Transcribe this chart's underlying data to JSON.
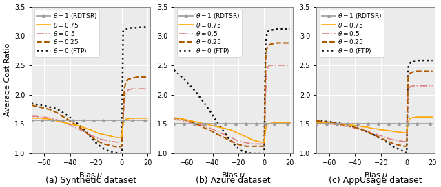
{
  "subplots": [
    {
      "label": "(a) Synthetic dataset"
    },
    {
      "label": "(b) Azure dataset"
    },
    {
      "label": "(c) AppUsage dataset"
    }
  ],
  "xlabel": "Bias $\\mu$",
  "ylabel": "Average Cost Ratio",
  "xlim": [
    -70,
    22
  ],
  "ylim": [
    1.0,
    3.5
  ],
  "xticks": [
    -60,
    -40,
    -20,
    0,
    20
  ],
  "yticks": [
    1.0,
    1.5,
    2.0,
    2.5,
    3.0,
    3.5
  ],
  "lines": [
    {
      "label": "$\\theta = 1$ (RDTSR)",
      "color": "#999999",
      "linestyle": "-",
      "linewidth": 1.2,
      "marker": "^",
      "markersize": 2.5
    },
    {
      "label": "$\\theta = 0.75$",
      "color": "#FFA500",
      "linestyle": "-",
      "linewidth": 1.2
    },
    {
      "label": "$\\theta = 0.5$",
      "color": "#E08080",
      "linestyle": "-.",
      "linewidth": 1.2
    },
    {
      "label": "$\\theta = 0.25$",
      "color": "#B05A00",
      "linestyle": "--",
      "linewidth": 1.5
    },
    {
      "label": "$\\theta = 0$ (FTP)",
      "color": "#111111",
      "linestyle": ":",
      "linewidth": 1.8
    }
  ],
  "x_vals": [
    -70,
    -68,
    -66,
    -64,
    -62,
    -60,
    -58,
    -56,
    -54,
    -52,
    -50,
    -48,
    -46,
    -44,
    -42,
    -40,
    -38,
    -36,
    -34,
    -32,
    -30,
    -28,
    -26,
    -24,
    -22,
    -20,
    -18,
    -16,
    -14,
    -12,
    -10,
    -8,
    -6,
    -4,
    -2,
    0,
    1,
    2,
    3,
    5,
    8,
    10,
    12,
    15,
    18,
    20
  ],
  "datasets": {
    "synthetic": {
      "theta1_y": [
        1.56,
        1.56,
        1.56,
        1.56,
        1.56,
        1.56,
        1.56,
        1.56,
        1.56,
        1.56,
        1.56,
        1.56,
        1.56,
        1.56,
        1.56,
        1.56,
        1.56,
        1.56,
        1.56,
        1.56,
        1.56,
        1.56,
        1.56,
        1.56,
        1.56,
        1.56,
        1.56,
        1.56,
        1.56,
        1.56,
        1.56,
        1.56,
        1.56,
        1.56,
        1.56,
        1.56,
        1.56,
        1.56,
        1.56,
        1.56,
        1.56,
        1.56,
        1.56,
        1.56,
        1.56,
        1.56
      ],
      "theta075_y": [
        1.6,
        1.6,
        1.6,
        1.6,
        1.6,
        1.59,
        1.59,
        1.58,
        1.57,
        1.56,
        1.55,
        1.54,
        1.53,
        1.52,
        1.51,
        1.5,
        1.49,
        1.48,
        1.47,
        1.46,
        1.44,
        1.43,
        1.41,
        1.4,
        1.38,
        1.36,
        1.34,
        1.33,
        1.32,
        1.31,
        1.3,
        1.29,
        1.28,
        1.27,
        1.27,
        1.28,
        1.5,
        1.56,
        1.58,
        1.59,
        1.6,
        1.6,
        1.6,
        1.6,
        1.6,
        1.6
      ],
      "theta05_y": [
        1.63,
        1.63,
        1.63,
        1.62,
        1.62,
        1.62,
        1.61,
        1.6,
        1.59,
        1.58,
        1.57,
        1.55,
        1.53,
        1.52,
        1.5,
        1.48,
        1.46,
        1.44,
        1.42,
        1.4,
        1.38,
        1.36,
        1.33,
        1.31,
        1.29,
        1.27,
        1.25,
        1.24,
        1.23,
        1.22,
        1.21,
        1.2,
        1.2,
        1.19,
        1.19,
        1.2,
        1.6,
        1.9,
        2.0,
        2.08,
        2.1,
        2.1,
        2.1,
        2.1,
        2.1,
        2.1
      ],
      "theta025_y": [
        1.82,
        1.81,
        1.8,
        1.79,
        1.78,
        1.77,
        1.76,
        1.75,
        1.73,
        1.71,
        1.69,
        1.66,
        1.63,
        1.61,
        1.58,
        1.55,
        1.52,
        1.49,
        1.46,
        1.43,
        1.4,
        1.36,
        1.32,
        1.29,
        1.26,
        1.22,
        1.2,
        1.18,
        1.16,
        1.15,
        1.14,
        1.13,
        1.12,
        1.11,
        1.11,
        1.12,
        1.6,
        2.1,
        2.2,
        2.26,
        2.28,
        2.29,
        2.3,
        2.3,
        2.3,
        2.3
      ],
      "theta0_y": [
        1.85,
        1.84,
        1.83,
        1.82,
        1.82,
        1.81,
        1.8,
        1.79,
        1.78,
        1.77,
        1.75,
        1.73,
        1.7,
        1.67,
        1.64,
        1.61,
        1.57,
        1.53,
        1.5,
        1.46,
        1.42,
        1.37,
        1.33,
        1.28,
        1.23,
        1.18,
        1.14,
        1.11,
        1.08,
        1.06,
        1.04,
        1.03,
        1.02,
        1.01,
        1.0,
        1.0,
        3.08,
        3.1,
        3.12,
        3.13,
        3.14,
        3.14,
        3.14,
        3.15,
        3.15,
        3.15
      ]
    },
    "azure": {
      "theta1_y": [
        1.5,
        1.5,
        1.5,
        1.5,
        1.5,
        1.5,
        1.5,
        1.5,
        1.5,
        1.5,
        1.5,
        1.5,
        1.5,
        1.5,
        1.5,
        1.5,
        1.5,
        1.5,
        1.5,
        1.5,
        1.5,
        1.5,
        1.5,
        1.5,
        1.5,
        1.5,
        1.5,
        1.5,
        1.5,
        1.5,
        1.5,
        1.5,
        1.5,
        1.5,
        1.5,
        1.5,
        1.5,
        1.5,
        1.5,
        1.5,
        1.5,
        1.5,
        1.5,
        1.5,
        1.5,
        1.5
      ],
      "theta075_y": [
        1.6,
        1.6,
        1.6,
        1.59,
        1.58,
        1.57,
        1.56,
        1.55,
        1.54,
        1.53,
        1.52,
        1.51,
        1.5,
        1.49,
        1.48,
        1.47,
        1.46,
        1.45,
        1.44,
        1.43,
        1.42,
        1.41,
        1.4,
        1.38,
        1.36,
        1.34,
        1.32,
        1.3,
        1.28,
        1.26,
        1.24,
        1.22,
        1.21,
        1.2,
        1.19,
        1.19,
        1.4,
        1.48,
        1.5,
        1.51,
        1.52,
        1.52,
        1.52,
        1.52,
        1.52,
        1.52
      ],
      "theta05_y": [
        1.58,
        1.57,
        1.57,
        1.56,
        1.55,
        1.54,
        1.53,
        1.52,
        1.51,
        1.5,
        1.49,
        1.48,
        1.46,
        1.44,
        1.43,
        1.41,
        1.39,
        1.37,
        1.35,
        1.33,
        1.31,
        1.29,
        1.27,
        1.25,
        1.23,
        1.21,
        1.2,
        1.19,
        1.18,
        1.17,
        1.17,
        1.16,
        1.16,
        1.16,
        1.16,
        1.16,
        2.0,
        2.4,
        2.48,
        2.5,
        2.5,
        2.5,
        2.5,
        2.5,
        2.5,
        2.5
      ],
      "theta025_y": [
        1.6,
        1.6,
        1.59,
        1.58,
        1.57,
        1.56,
        1.55,
        1.53,
        1.51,
        1.49,
        1.47,
        1.45,
        1.43,
        1.41,
        1.39,
        1.37,
        1.34,
        1.32,
        1.3,
        1.28,
        1.26,
        1.23,
        1.21,
        1.19,
        1.17,
        1.15,
        1.14,
        1.13,
        1.12,
        1.12,
        1.12,
        1.12,
        1.12,
        1.12,
        1.12,
        1.12,
        2.6,
        2.78,
        2.83,
        2.86,
        2.87,
        2.88,
        2.88,
        2.88,
        2.88,
        2.88
      ],
      "theta0_y": [
        2.42,
        2.38,
        2.34,
        2.3,
        2.26,
        2.22,
        2.17,
        2.12,
        2.07,
        2.02,
        1.96,
        1.9,
        1.84,
        1.78,
        1.72,
        1.65,
        1.58,
        1.51,
        1.45,
        1.39,
        1.33,
        1.27,
        1.22,
        1.17,
        1.12,
        1.08,
        1.05,
        1.03,
        1.02,
        1.01,
        1.0,
        1.0,
        1.0,
        1.0,
        1.0,
        1.0,
        2.85,
        3.02,
        3.08,
        3.1,
        3.11,
        3.12,
        3.12,
        3.12,
        3.12,
        3.12
      ]
    },
    "appusage": {
      "theta1_y": [
        1.5,
        1.5,
        1.5,
        1.5,
        1.5,
        1.5,
        1.5,
        1.5,
        1.5,
        1.5,
        1.5,
        1.5,
        1.5,
        1.5,
        1.5,
        1.5,
        1.5,
        1.5,
        1.5,
        1.5,
        1.5,
        1.5,
        1.5,
        1.5,
        1.5,
        1.5,
        1.5,
        1.5,
        1.5,
        1.5,
        1.5,
        1.5,
        1.5,
        1.5,
        1.5,
        1.5,
        1.5,
        1.5,
        1.5,
        1.5,
        1.5,
        1.5,
        1.5,
        1.5,
        1.5,
        1.5
      ],
      "theta075_y": [
        1.52,
        1.52,
        1.52,
        1.52,
        1.51,
        1.51,
        1.51,
        1.5,
        1.5,
        1.5,
        1.5,
        1.49,
        1.49,
        1.48,
        1.48,
        1.47,
        1.47,
        1.46,
        1.45,
        1.45,
        1.44,
        1.43,
        1.42,
        1.42,
        1.41,
        1.4,
        1.4,
        1.39,
        1.39,
        1.38,
        1.37,
        1.37,
        1.36,
        1.36,
        1.35,
        1.35,
        1.5,
        1.58,
        1.6,
        1.61,
        1.62,
        1.62,
        1.62,
        1.62,
        1.62,
        1.62
      ],
      "theta05_y": [
        1.52,
        1.52,
        1.51,
        1.51,
        1.51,
        1.5,
        1.5,
        1.49,
        1.49,
        1.48,
        1.47,
        1.46,
        1.46,
        1.45,
        1.44,
        1.43,
        1.42,
        1.41,
        1.4,
        1.39,
        1.37,
        1.36,
        1.34,
        1.33,
        1.31,
        1.3,
        1.28,
        1.27,
        1.25,
        1.24,
        1.23,
        1.22,
        1.21,
        1.21,
        1.2,
        1.2,
        2.05,
        2.12,
        2.14,
        2.15,
        2.15,
        2.15,
        2.15,
        2.15,
        2.15,
        2.15
      ],
      "theta025_y": [
        1.55,
        1.55,
        1.54,
        1.54,
        1.53,
        1.53,
        1.52,
        1.51,
        1.51,
        1.5,
        1.49,
        1.48,
        1.47,
        1.46,
        1.45,
        1.44,
        1.43,
        1.41,
        1.4,
        1.38,
        1.36,
        1.34,
        1.32,
        1.3,
        1.28,
        1.26,
        1.24,
        1.22,
        1.2,
        1.18,
        1.16,
        1.15,
        1.14,
        1.13,
        1.12,
        1.12,
        2.28,
        2.35,
        2.37,
        2.39,
        2.4,
        2.4,
        2.4,
        2.4,
        2.4,
        2.4
      ],
      "theta0_y": [
        1.56,
        1.56,
        1.55,
        1.55,
        1.54,
        1.54,
        1.53,
        1.52,
        1.52,
        1.51,
        1.5,
        1.49,
        1.48,
        1.47,
        1.46,
        1.45,
        1.43,
        1.42,
        1.4,
        1.38,
        1.36,
        1.34,
        1.32,
        1.3,
        1.27,
        1.25,
        1.22,
        1.2,
        1.17,
        1.14,
        1.11,
        1.09,
        1.07,
        1.05,
        1.03,
        1.01,
        2.45,
        2.52,
        2.55,
        2.57,
        2.58,
        2.58,
        2.58,
        2.58,
        2.58,
        2.58
      ]
    }
  },
  "background_color": "#ebebeb",
  "legend_fontsize": 6.5,
  "axis_fontsize": 8,
  "tick_fontsize": 7,
  "sublabel_fontsize": 9
}
